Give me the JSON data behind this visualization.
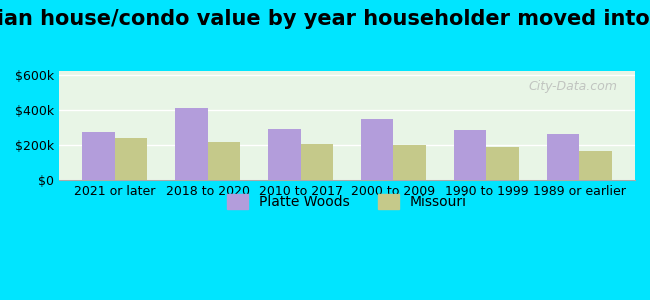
{
  "title": "Median house/condo value by year householder moved into unit",
  "categories": [
    "2021 or later",
    "2018 to 2020",
    "2010 to 2017",
    "2000 to 2009",
    "1990 to 1999",
    "1989 or earlier"
  ],
  "platte_woods": [
    275000,
    410000,
    290000,
    350000,
    285000,
    265000
  ],
  "missouri": [
    240000,
    215000,
    205000,
    200000,
    190000,
    165000
  ],
  "platte_color": "#b39ddb",
  "missouri_color": "#c5c98a",
  "background_outer": "#00e5ff",
  "background_inner_top": "#e8f5e9",
  "background_inner_bottom": "#f0f7e8",
  "ylabel_ticks": [
    0,
    200000,
    400000,
    600000
  ],
  "ylabel_labels": [
    "$0",
    "$200k",
    "$400k",
    "$600k"
  ],
  "ylim": [
    0,
    620000
  ],
  "legend_labels": [
    "Platte Woods",
    "Missouri"
  ],
  "watermark": "City-Data.com",
  "title_fontsize": 15,
  "tick_fontsize": 9,
  "legend_fontsize": 10,
  "bar_width": 0.35
}
